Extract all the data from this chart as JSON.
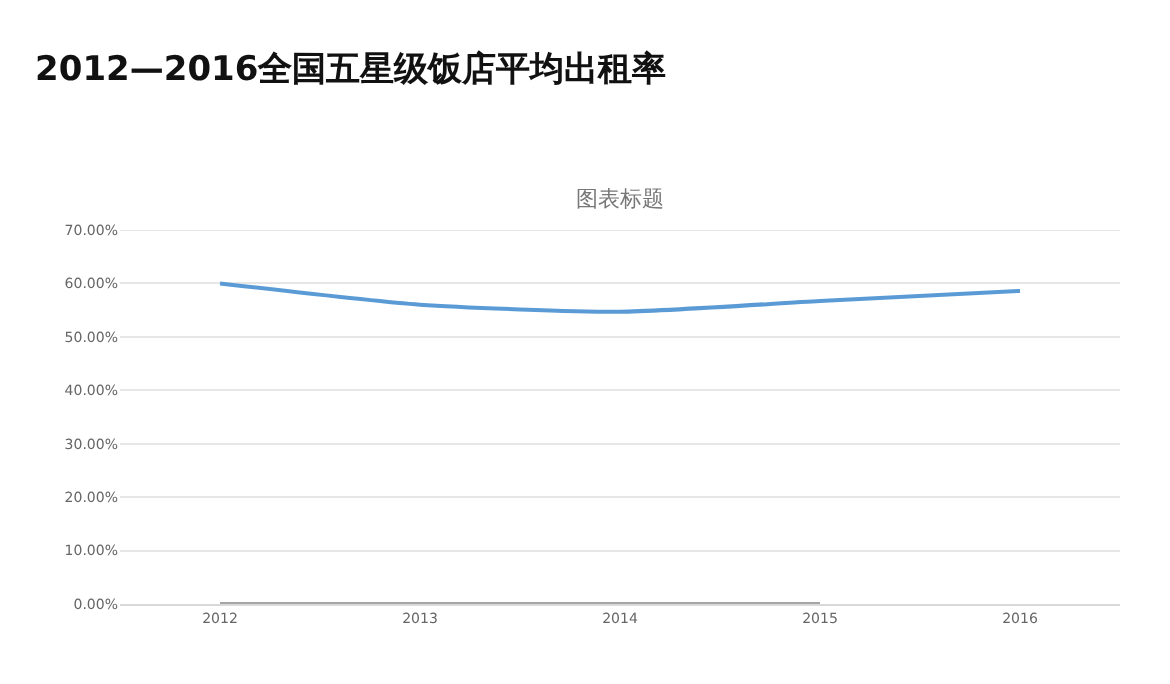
{
  "chart_data": {
    "type": "line",
    "title": "2012—2016全国五星级饭店平均出租率",
    "subtitle": "图表标题",
    "categories": [
      "2012",
      "2013",
      "2014",
      "2015",
      "2016"
    ],
    "series": [
      {
        "color": "#5b9bd5",
        "values": [
          0.6,
          0.56,
          0.547,
          0.567,
          0.586
        ]
      },
      {
        "color": "#a5a5a5",
        "values": [
          0,
          0,
          0,
          0,
          null
        ]
      }
    ],
    "ylim": [
      0,
      0.7
    ],
    "yticks": [
      {
        "value": 0,
        "label": "0.00%"
      },
      {
        "value": 0.1,
        "label": "10.00%"
      },
      {
        "value": 0.2,
        "label": "20.00%"
      },
      {
        "value": 0.3,
        "label": "30.00%"
      },
      {
        "value": 0.4,
        "label": "40.00%"
      },
      {
        "value": 0.5,
        "label": "50.00%"
      },
      {
        "value": 0.6,
        "label": "60.00%"
      },
      {
        "value": 0.7,
        "label": "70.00%"
      }
    ],
    "grid": "y",
    "marker": "none",
    "line_style": "solid"
  }
}
